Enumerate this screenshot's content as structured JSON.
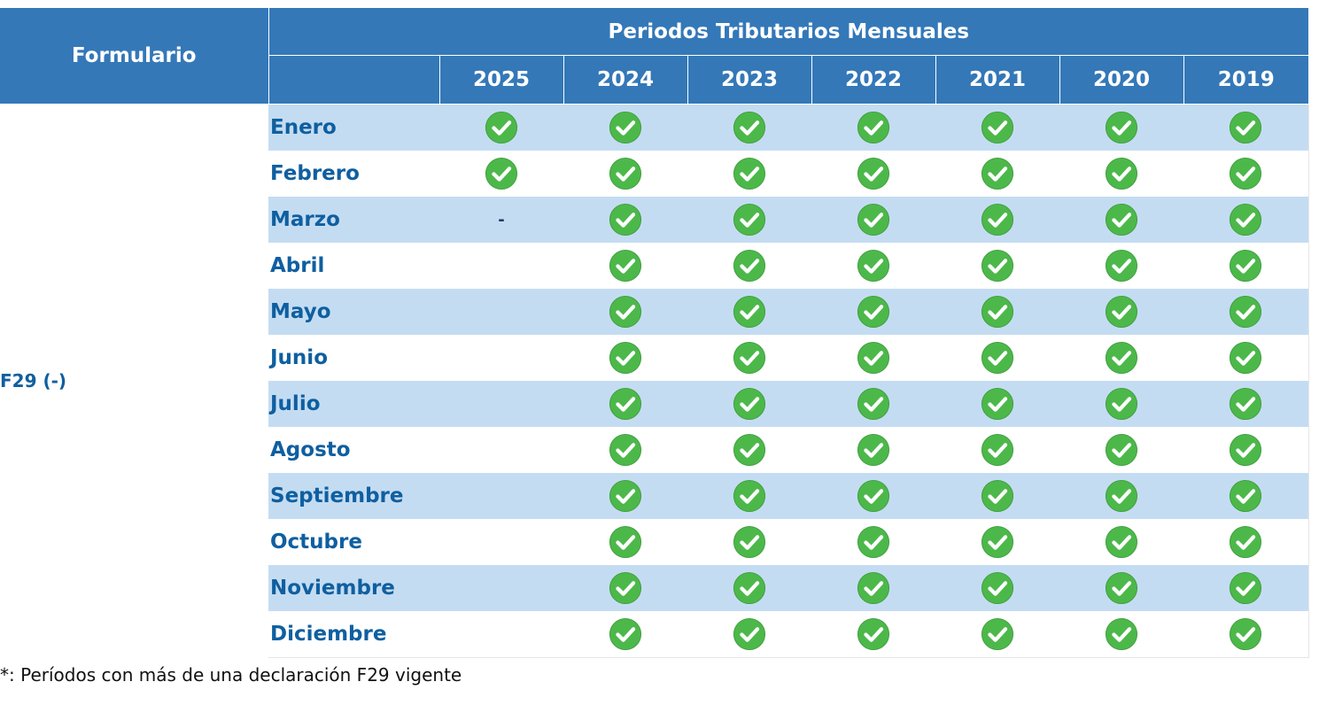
{
  "header": {
    "formulario": "Formulario",
    "periodos": "Periodos Tributarios Mensuales",
    "years": [
      "2025",
      "2024",
      "2023",
      "2022",
      "2021",
      "2020",
      "2019"
    ]
  },
  "form": {
    "label": "F29 (-)"
  },
  "months": [
    "Enero",
    "Febrero",
    "Marzo",
    "Abril",
    "Mayo",
    "Junio",
    "Julio",
    "Agosto",
    "Septiembre",
    "Octubre",
    "Noviembre",
    "Diciembre"
  ],
  "status_icons": {
    "check": "check-circle-icon",
    "none": ""
  },
  "cells": [
    [
      "check",
      "check",
      "check",
      "check",
      "check",
      "check",
      "check"
    ],
    [
      "check",
      "check",
      "check",
      "check",
      "check",
      "check",
      "check"
    ],
    [
      "-",
      "check",
      "check",
      "check",
      "check",
      "check",
      "check"
    ],
    [
      "",
      "check",
      "check",
      "check",
      "check",
      "check",
      "check"
    ],
    [
      "",
      "check",
      "check",
      "check",
      "check",
      "check",
      "check"
    ],
    [
      "",
      "check",
      "check",
      "check",
      "check",
      "check",
      "check"
    ],
    [
      "",
      "check",
      "check",
      "check",
      "check",
      "check",
      "check"
    ],
    [
      "",
      "check",
      "check",
      "check",
      "check",
      "check",
      "check"
    ],
    [
      "",
      "check",
      "check",
      "check",
      "check",
      "check",
      "check"
    ],
    [
      "",
      "check",
      "check",
      "check",
      "check",
      "check",
      "check"
    ],
    [
      "",
      "check",
      "check",
      "check",
      "check",
      "check",
      "check"
    ],
    [
      "",
      "check",
      "check",
      "check",
      "check",
      "check",
      "check"
    ]
  ],
  "colors": {
    "header_bg": "#3478b8",
    "row_alt_bg": "#c4dcf2",
    "text_blue": "#0f5fa0",
    "check_green": "#4cb84a"
  },
  "footnote": "*: Períodos con más de una declaración F29 vigente"
}
